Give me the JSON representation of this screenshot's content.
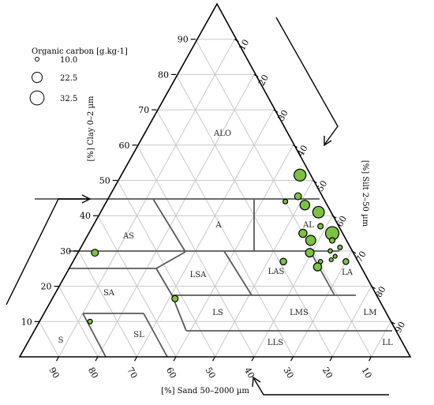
{
  "chart_data": {
    "type": "scatter",
    "subtype": "ternary",
    "axes": {
      "clay": {
        "label": "[%] Clay  0–2 µm",
        "ticks": [
          10,
          20,
          30,
          40,
          50,
          60,
          70,
          80,
          90
        ]
      },
      "silt": {
        "label": "[%] Silt  2–50 µm",
        "ticks": [
          10,
          20,
          30,
          40,
          50,
          60,
          70,
          80,
          90
        ]
      },
      "sand": {
        "label": "[%] Sand  50–2000 µm",
        "ticks": [
          90,
          80,
          70,
          60,
          50,
          40,
          30,
          20,
          10
        ]
      }
    },
    "grid": true,
    "legend": {
      "title": "Organic carbon [g.kg-1]",
      "entries": [
        {
          "label": "10.0",
          "value": 10.0
        },
        {
          "label": "22.5",
          "value": 22.5
        },
        {
          "label": "32.5",
          "value": 32.5
        }
      ],
      "placement": "top-left"
    },
    "zones": [
      "ALO",
      "A",
      "AL",
      "AS",
      "LSA",
      "LAS",
      "LA",
      "SA",
      "LS",
      "LMS",
      "LM",
      "S",
      "SL",
      "LLS",
      "LL"
    ],
    "point_color": "#7cc242",
    "points": [
      {
        "clay": 51.5,
        "silt": 46.0,
        "sand": 2.5,
        "oc": 31.0
      },
      {
        "clay": 45.5,
        "silt": 48.5,
        "sand": 6.0,
        "oc": 18.0
      },
      {
        "clay": 44.0,
        "silt": 46.0,
        "sand": 10.0,
        "oc": 12.0
      },
      {
        "clay": 43.0,
        "silt": 51.5,
        "sand": 5.5,
        "oc": 25.0
      },
      {
        "clay": 41.0,
        "silt": 56.0,
        "sand": 3.0,
        "oc": 30.0
      },
      {
        "clay": 37.0,
        "silt": 58.5,
        "sand": 4.5,
        "oc": 14.0
      },
      {
        "clay": 35.0,
        "silt": 55.0,
        "sand": 10.0,
        "oc": 21.0
      },
      {
        "clay": 35.0,
        "silt": 62.5,
        "sand": 2.5,
        "oc": 35.0
      },
      {
        "clay": 33.0,
        "silt": 58.0,
        "sand": 9.0,
        "oc": 26.0
      },
      {
        "clay": 33.0,
        "silt": 63.5,
        "sand": 3.5,
        "oc": 14.0
      },
      {
        "clay": 31.0,
        "silt": 66.5,
        "sand": 2.5,
        "oc": 12.0
      },
      {
        "clay": 30.0,
        "silt": 64.5,
        "sand": 5.5,
        "oc": 11.0
      },
      {
        "clay": 29.5,
        "silt": 59.5,
        "sand": 11.0,
        "oc": 22.0
      },
      {
        "clay": 28.5,
        "silt": 66.5,
        "sand": 5.0,
        "oc": 10.0
      },
      {
        "clay": 27.5,
        "silt": 66.0,
        "sand": 6.5,
        "oc": 10.0
      },
      {
        "clay": 27.0,
        "silt": 54.0,
        "sand": 19.0,
        "oc": 17.0
      },
      {
        "clay": 27.0,
        "silt": 63.5,
        "sand": 9.5,
        "oc": 11.0
      },
      {
        "clay": 27.0,
        "silt": 70.0,
        "sand": 3.0,
        "oc": 15.0
      },
      {
        "clay": 25.5,
        "silt": 63.5,
        "sand": 11.0,
        "oc": 21.0
      },
      {
        "clay": 29.5,
        "silt": 4.5,
        "sand": 66.0,
        "oc": 18.0
      },
      {
        "clay": 16.5,
        "silt": 31.5,
        "sand": 52.0,
        "oc": 16.0
      },
      {
        "clay": 10.0,
        "silt": 13.0,
        "sand": 77.0,
        "oc": 12.0
      }
    ]
  }
}
